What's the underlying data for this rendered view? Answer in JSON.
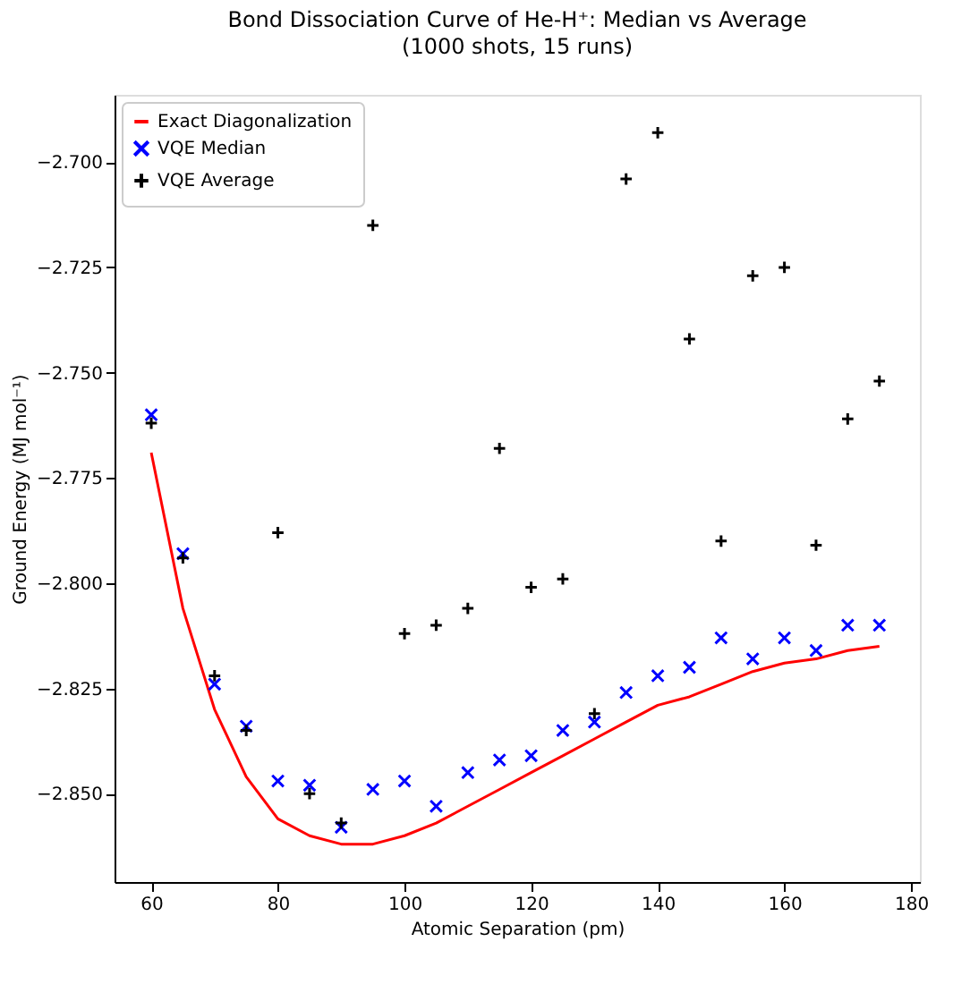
{
  "chart_data": {
    "type": "line",
    "title": "Bond Dissociation Curve of He-H⁺: Median vs Average",
    "subtitle": "(1000 shots, 15 runs)",
    "xlabel": "Atomic Separation (pm)",
    "ylabel": "Ground Energy (MJ mol⁻¹)",
    "x": [
      60,
      65,
      70,
      75,
      80,
      85,
      90,
      95,
      100,
      105,
      110,
      115,
      120,
      125,
      130,
      135,
      140,
      145,
      150,
      155,
      160,
      165,
      170,
      175
    ],
    "series": [
      {
        "name": "Exact Diagonalization",
        "color": "#ff0000",
        "marker": "none",
        "line_style": "solid",
        "values": [
          -2.769,
          -2.806,
          -2.83,
          -2.846,
          -2.856,
          -2.86,
          -2.862,
          -2.862,
          -2.86,
          -2.857,
          -2.853,
          -2.849,
          -2.845,
          -2.841,
          -2.837,
          -2.833,
          -2.829,
          -2.827,
          -2.824,
          -2.821,
          -2.819,
          -2.818,
          -2.816,
          -2.815
        ]
      },
      {
        "name": "VQE Median",
        "type": "scatter",
        "color": "#0000ff",
        "marker": "cross",
        "values": [
          -2.76,
          -2.793,
          -2.824,
          -2.834,
          -2.847,
          -2.848,
          -2.858,
          -2.849,
          -2.847,
          -2.853,
          -2.845,
          -2.842,
          -2.841,
          -2.835,
          -2.833,
          -2.826,
          -2.822,
          -2.82,
          -2.813,
          -2.818,
          -2.813,
          -2.816,
          -2.81,
          -2.81
        ]
      },
      {
        "name": "VQE Average",
        "type": "scatter",
        "color": "#000000",
        "marker": "plus",
        "values": [
          -2.762,
          -2.794,
          -2.822,
          -2.835,
          -2.788,
          -2.85,
          -2.857,
          -2.715,
          -2.812,
          -2.81,
          -2.806,
          -2.768,
          -2.801,
          -2.799,
          -2.831,
          -2.704,
          -2.693,
          -2.742,
          -2.79,
          -2.727,
          -2.725,
          -2.791,
          -2.761,
          -2.752
        ]
      }
    ],
    "xlim": [
      54.2,
      181.4
    ],
    "xticks": [
      60,
      80,
      100,
      120,
      140,
      160,
      180
    ],
    "ylim": [
      -2.871,
      -2.684
    ],
    "yticks": [
      {
        "value": -2.85,
        "label": "−2.850"
      },
      {
        "value": -2.825,
        "label": "−2.825"
      },
      {
        "value": -2.8,
        "label": "−2.800"
      },
      {
        "value": -2.775,
        "label": "−2.775"
      },
      {
        "value": -2.75,
        "label": "−2.750"
      },
      {
        "value": -2.725,
        "label": "−2.725"
      },
      {
        "value": -2.7,
        "label": "−2.700"
      }
    ],
    "grid": false,
    "legend": "top left"
  }
}
